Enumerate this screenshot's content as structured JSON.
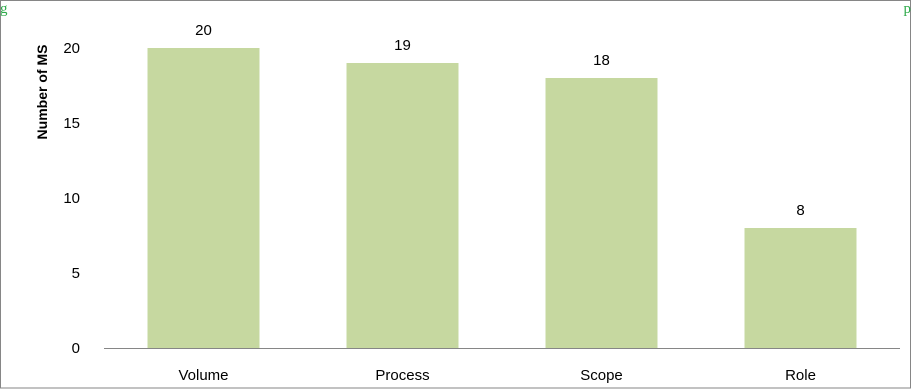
{
  "top_text_fragments": {
    "left": "g",
    "right": "p"
  },
  "chart_data": {
    "type": "bar",
    "categories": [
      "Volume",
      "Process",
      "Scope",
      "Role"
    ],
    "values": [
      20,
      19,
      18,
      8
    ],
    "data_labels": [
      "20",
      "19",
      "18",
      "8"
    ],
    "title": "",
    "xlabel": "",
    "ylabel": "Number of MS",
    "ylim": [
      0,
      20
    ],
    "yticks": [
      0,
      5,
      10,
      15,
      20
    ],
    "ytick_labels": [
      "0",
      "5",
      "10",
      "15",
      "20"
    ],
    "grid": false,
    "legend": "none",
    "bar_color": "#c6d8a0",
    "axis_color": "#868686",
    "border_color": "#868686",
    "fragment_color": "#2eaa4a"
  }
}
